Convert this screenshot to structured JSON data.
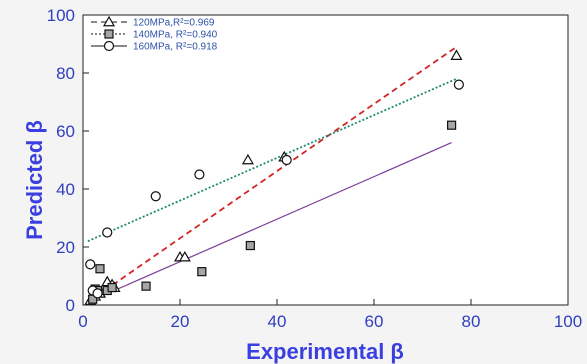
{
  "chart_data": {
    "type": "scatter",
    "xlabel": "Experimental β",
    "ylabel": "Predicted β",
    "xlim": [
      0,
      100
    ],
    "ylim": [
      0,
      100
    ],
    "x_ticks": [
      "0",
      "20",
      "40",
      "60",
      "80",
      "100"
    ],
    "y_ticks": [
      "0",
      "20",
      "40",
      "60",
      "80",
      "100"
    ],
    "grid": false,
    "legend_position": "top-left",
    "series": [
      {
        "name": "120MPa,R²=0.969",
        "marker": "triangle",
        "fill": "#ffffff",
        "line_color": "#111111",
        "line_style": "dashed",
        "points": [
          [
            1.5,
            1.5
          ],
          [
            2.5,
            3
          ],
          [
            3.5,
            4
          ],
          [
            4.5,
            5
          ],
          [
            5,
            8
          ],
          [
            6,
            7
          ],
          [
            6.5,
            6
          ],
          [
            20,
            16.5
          ],
          [
            21,
            16.5
          ],
          [
            34,
            50
          ],
          [
            41.5,
            51
          ],
          [
            77,
            86
          ]
        ]
      },
      {
        "name": "140MPa, R²=0.940",
        "marker": "square",
        "fill": "#a6a6a6",
        "line_color": "#111111",
        "line_style": "dotted",
        "points": [
          [
            2,
            2
          ],
          [
            2.5,
            5.5
          ],
          [
            3,
            5
          ],
          [
            3.5,
            12.5
          ],
          [
            5,
            5
          ],
          [
            6,
            6
          ],
          [
            13,
            6.5
          ],
          [
            24.5,
            11.5
          ],
          [
            34.5,
            20.5
          ],
          [
            76,
            62
          ]
        ]
      },
      {
        "name": "160MPa, R²=0.918",
        "marker": "circle",
        "fill": "#ffffff",
        "line_color": "#111111",
        "line_style": "solid",
        "points": [
          [
            1.5,
            14
          ],
          [
            2,
            5
          ],
          [
            3,
            4
          ],
          [
            5,
            25
          ],
          [
            15,
            37.5
          ],
          [
            24,
            45
          ],
          [
            42,
            50
          ],
          [
            77.5,
            76
          ]
        ]
      }
    ],
    "fit_lines": [
      {
        "color": "#d42424",
        "style": "dashed",
        "from": [
          1,
          1
        ],
        "to": [
          77,
          89
        ]
      },
      {
        "color": "#1e8a72",
        "style": "dotted",
        "from": [
          1,
          22
        ],
        "to": [
          77,
          78
        ]
      },
      {
        "color": "#7a3f9a",
        "style": "solid",
        "from": [
          1,
          1
        ],
        "to": [
          76,
          56
        ]
      }
    ]
  }
}
